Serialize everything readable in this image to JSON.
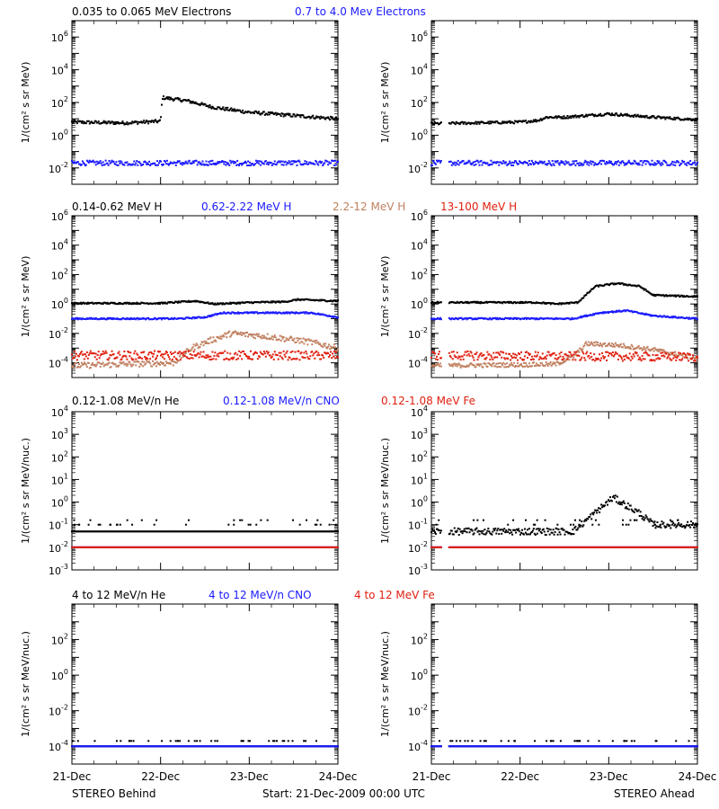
{
  "footer": {
    "left": "STEREO Behind",
    "center": "Start: 21-Dec-2009 00:00 UTC",
    "right": "STEREO Ahead"
  },
  "colors": {
    "black": "#000000",
    "blue": "#1a1aff",
    "brown": "#c08060",
    "red": "#e02010"
  },
  "chart_data": [
    {
      "type": "scatter",
      "name": "electrons",
      "ylabel": "1/(cm² s sr MeV)",
      "y_scale": "log",
      "ylim_exp": [
        -3,
        7
      ],
      "y_tick_exps": [
        -2,
        0,
        2,
        4,
        6
      ],
      "x_labels": [
        "21-Dec",
        "22-Dec",
        "23-Dec",
        "24-Dec"
      ],
      "xlim_days": [
        0,
        3
      ],
      "titles": [
        {
          "text": "0.035 to 0.065 MeV Electrons",
          "color": "#000000"
        },
        {
          "text": "0.7 to 4.0 Mev Electrons",
          "color": "#1a1aff"
        }
      ],
      "panels": [
        {
          "side": "STEREO Behind",
          "series": [
            {
              "label": "0.035 to 0.065 MeV Electrons",
              "color": "#000000",
              "knots": [
                [
                  0,
                  0.8
                ],
                [
                  0.6,
                  0.75
                ],
                [
                  1.0,
                  0.85
                ],
                [
                  1.02,
                  2.3
                ],
                [
                  1.3,
                  2.1
                ],
                [
                  1.6,
                  1.7
                ],
                [
                  2.0,
                  1.4
                ],
                [
                  2.5,
                  1.2
                ],
                [
                  3,
                  1.0
                ]
              ],
              "noise": 0.1
            },
            {
              "label": "0.7 to 4.0 Mev Electrons",
              "color": "#1a1aff",
              "knots": [
                [
                  0,
                  -1.7
                ],
                [
                  3,
                  -1.7
                ]
              ],
              "noise": 0.15
            }
          ]
        },
        {
          "side": "STEREO Ahead",
          "series": [
            {
              "label": "0.035 to 0.065 MeV Electrons",
              "color": "#000000",
              "knots": [
                [
                  0,
                  0.7
                ],
                [
                  1.0,
                  0.8
                ],
                [
                  1.2,
                  0.9
                ],
                [
                  1.3,
                  1.1
                ],
                [
                  1.5,
                  1.1
                ],
                [
                  2.0,
                  1.3
                ],
                [
                  2.5,
                  1.1
                ],
                [
                  3,
                  0.95
                ]
              ],
              "noise": 0.08,
              "gap": [
                0.12,
                0.2
              ]
            },
            {
              "label": "0.7 to 4.0 Mev Electrons",
              "color": "#1a1aff",
              "knots": [
                [
                  0,
                  -1.7
                ],
                [
                  3,
                  -1.7
                ]
              ],
              "noise": 0.15,
              "gap": [
                0.12,
                0.2
              ]
            }
          ]
        }
      ]
    },
    {
      "type": "scatter",
      "name": "protons",
      "ylabel": "1/(cm² s sr MeV)",
      "y_scale": "log",
      "ylim_exp": [
        -5,
        6
      ],
      "y_tick_exps": [
        -4,
        -2,
        0,
        2,
        4,
        6
      ],
      "x_labels": [
        "21-Dec",
        "22-Dec",
        "23-Dec",
        "24-Dec"
      ],
      "xlim_days": [
        0,
        3
      ],
      "titles": [
        {
          "text": "0.14-0.62 MeV H",
          "color": "#000000"
        },
        {
          "text": "0.62-2.22 MeV H",
          "color": "#1a1aff"
        },
        {
          "text": "2.2-12 MeV H",
          "color": "#c08060"
        },
        {
          "text": "13-100 MeV H",
          "color": "#e02010"
        }
      ],
      "panels": [
        {
          "side": "STEREO Behind",
          "series": [
            {
              "label": "0.14-0.62 MeV H",
              "color": "#000000",
              "knots": [
                [
                  0,
                  0.05
                ],
                [
                  1.0,
                  0.05
                ],
                [
                  1.4,
                  0.2
                ],
                [
                  1.6,
                  0.0
                ],
                [
                  2.0,
                  0.1
                ],
                [
                  2.4,
                  0.15
                ],
                [
                  2.55,
                  0.3
                ],
                [
                  3,
                  0.2
                ]
              ],
              "noise": 0.05
            },
            {
              "label": "0.62-2.22 MeV H",
              "color": "#1a1aff",
              "knots": [
                [
                  0,
                  -1.0
                ],
                [
                  1.2,
                  -1.0
                ],
                [
                  1.5,
                  -0.9
                ],
                [
                  1.7,
                  -0.6
                ],
                [
                  2.3,
                  -0.6
                ],
                [
                  2.7,
                  -0.6
                ],
                [
                  3,
                  -0.9
                ]
              ],
              "noise": 0.05
            },
            {
              "label": "2.2-12 MeV H",
              "color": "#c08060",
              "knots": [
                [
                  0,
                  -4.2
                ],
                [
                  1.15,
                  -4.0
                ],
                [
                  1.35,
                  -3.0
                ],
                [
                  1.55,
                  -2.5
                ],
                [
                  1.8,
                  -2.0
                ],
                [
                  2.2,
                  -2.2
                ],
                [
                  2.7,
                  -2.6
                ],
                [
                  3,
                  -3.0
                ]
              ],
              "noise": 0.2
            },
            {
              "label": "13-100 MeV H",
              "color": "#e02010",
              "knots": [
                [
                  0,
                  -3.5
                ],
                [
                  3,
                  -3.5
                ]
              ],
              "noise": 0.3
            }
          ]
        },
        {
          "side": "STEREO Ahead",
          "series": [
            {
              "label": "0.14-0.62 MeV H",
              "color": "#000000",
              "knots": [
                [
                  0,
                  0.1
                ],
                [
                  1.2,
                  0.1
                ],
                [
                  1.4,
                  0.0
                ],
                [
                  1.65,
                  0.1
                ],
                [
                  1.85,
                  1.2
                ],
                [
                  2.1,
                  1.4
                ],
                [
                  2.35,
                  1.2
                ],
                [
                  2.5,
                  0.6
                ],
                [
                  3,
                  0.5
                ]
              ],
              "noise": 0.05,
              "gap": [
                0.12,
                0.2
              ]
            },
            {
              "label": "0.62-2.22 MeV H",
              "color": "#1a1aff",
              "knots": [
                [
                  0,
                  -1.0
                ],
                [
                  1.6,
                  -1.0
                ],
                [
                  1.9,
                  -0.6
                ],
                [
                  2.2,
                  -0.45
                ],
                [
                  2.5,
                  -0.8
                ],
                [
                  3,
                  -1.0
                ]
              ],
              "noise": 0.05,
              "gap": [
                0.12,
                0.2
              ]
            },
            {
              "label": "2.2-12 MeV H",
              "color": "#c08060",
              "knots": [
                [
                  0,
                  -4.2
                ],
                [
                  1.4,
                  -4.1
                ],
                [
                  1.6,
                  -3.6
                ],
                [
                  1.75,
                  -2.7
                ],
                [
                  2.1,
                  -2.8
                ],
                [
                  2.5,
                  -3.1
                ],
                [
                  3,
                  -3.7
                ]
              ],
              "noise": 0.15,
              "gap": [
                0.12,
                0.2
              ]
            },
            {
              "label": "13-100 MeV H",
              "color": "#e02010",
              "knots": [
                [
                  0,
                  -3.5
                ],
                [
                  3,
                  -3.6
                ]
              ],
              "noise": 0.3,
              "gap": [
                0.12,
                0.2
              ]
            }
          ]
        }
      ]
    },
    {
      "type": "scatter",
      "name": "low-energy-ions",
      "ylabel": "1/(cm² s sr MeV/nuc.)",
      "y_scale": "log",
      "ylim_exp": [
        -3,
        4
      ],
      "y_tick_exps": [
        -3,
        -2,
        -1,
        0,
        1,
        2,
        3,
        4
      ],
      "x_labels": [
        "21-Dec",
        "22-Dec",
        "23-Dec",
        "24-Dec"
      ],
      "xlim_days": [
        0,
        3
      ],
      "titles": [
        {
          "text": "0.12-1.08 MeV/n He",
          "color": "#000000"
        },
        {
          "text": "0.12-1.08 MeV/n CNO",
          "color": "#1a1aff"
        },
        {
          "text": "0.12-1.08 MeV Fe",
          "color": "#e02010"
        }
      ],
      "panels": [
        {
          "side": "STEREO Behind",
          "series": [
            {
              "label": "0.12-1.08 MeV/n He",
              "color": "#000000",
              "knots": [
                [
                  0,
                  -1.3
                ],
                [
                  3,
                  -1.3
                ]
              ],
              "noise": 0.0,
              "sparse": [
                -1.0,
                -0.8
              ]
            },
            {
              "label": "0.12-1.08 MeV/n CNO",
              "color": "#1a1aff",
              "knots": [
                [
                  0,
                  -2.0
                ],
                [
                  3,
                  -2.0
                ]
              ],
              "noise": 0.0
            },
            {
              "label": "0.12-1.08 MeV Fe",
              "color": "#e02010",
              "knots": [
                [
                  0,
                  -2.0
                ],
                [
                  3,
                  -2.0
                ]
              ],
              "noise": 0.0
            }
          ]
        },
        {
          "side": "STEREO Ahead",
          "series": [
            {
              "label": "0.12-1.08 MeV/n He",
              "color": "#000000",
              "knots": [
                [
                  0,
                  -1.3
                ],
                [
                  1.6,
                  -1.3
                ],
                [
                  1.75,
                  -0.8
                ],
                [
                  2.05,
                  0.2
                ],
                [
                  2.35,
                  -0.5
                ],
                [
                  2.5,
                  -1.0
                ],
                [
                  3,
                  -1.0
                ]
              ],
              "noise": 0.15,
              "sparse": [
                -1.0,
                -0.8
              ],
              "gap": [
                0.12,
                0.2
              ]
            },
            {
              "label": "0.12-1.08 MeV/n CNO",
              "color": "#1a1aff",
              "knots": [
                [
                  0,
                  -2.0
                ],
                [
                  3,
                  -2.0
                ]
              ],
              "noise": 0.0,
              "gap": [
                0.12,
                0.2
              ]
            },
            {
              "label": "0.12-1.08 MeV Fe",
              "color": "#e02010",
              "knots": [
                [
                  0,
                  -2.0
                ],
                [
                  3,
                  -2.0
                ]
              ],
              "noise": 0.0,
              "gap": [
                0.12,
                0.2
              ]
            }
          ]
        }
      ]
    },
    {
      "type": "scatter",
      "name": "high-energy-ions",
      "ylabel": "1/(cm² s sr MeV/nuc.)",
      "y_scale": "log",
      "ylim_exp": [
        -5,
        4
      ],
      "y_tick_exps": [
        -4,
        -2,
        0,
        2
      ],
      "x_labels": [
        "21-Dec",
        "22-Dec",
        "23-Dec",
        "24-Dec"
      ],
      "xlim_days": [
        0,
        3
      ],
      "titles": [
        {
          "text": "4 to 12 MeV/n He",
          "color": "#000000"
        },
        {
          "text": "4 to 12 MeV/n CNO",
          "color": "#1a1aff"
        },
        {
          "text": "4 to 12 MeV Fe",
          "color": "#e02010"
        }
      ],
      "panels": [
        {
          "side": "STEREO Behind",
          "series": [
            {
              "label": "4 to 12 MeV/n He",
              "color": "#000000",
              "knots": [
                [
                  0,
                  -4.0
                ],
                [
                  3,
                  -4.0
                ]
              ],
              "noise": 0.0,
              "sparse": [
                -3.7
              ]
            },
            {
              "label": "4 to 12 MeV/n CNO",
              "color": "#1a1aff",
              "knots": [
                [
                  0,
                  -4.0
                ],
                [
                  3,
                  -4.0
                ]
              ],
              "noise": 0.0
            }
          ]
        },
        {
          "side": "STEREO Ahead",
          "series": [
            {
              "label": "4 to 12 MeV/n He",
              "color": "#000000",
              "knots": [
                [
                  0,
                  -4.0
                ],
                [
                  3,
                  -4.0
                ]
              ],
              "noise": 0.0,
              "sparse": [
                -3.7
              ],
              "gap": [
                0.12,
                0.2
              ]
            },
            {
              "label": "4 to 12 MeV/n CNO",
              "color": "#1a1aff",
              "knots": [
                [
                  0,
                  -4.0
                ],
                [
                  3,
                  -4.0
                ]
              ],
              "noise": 0.0,
              "gap": [
                0.12,
                0.2
              ]
            }
          ]
        }
      ]
    }
  ]
}
